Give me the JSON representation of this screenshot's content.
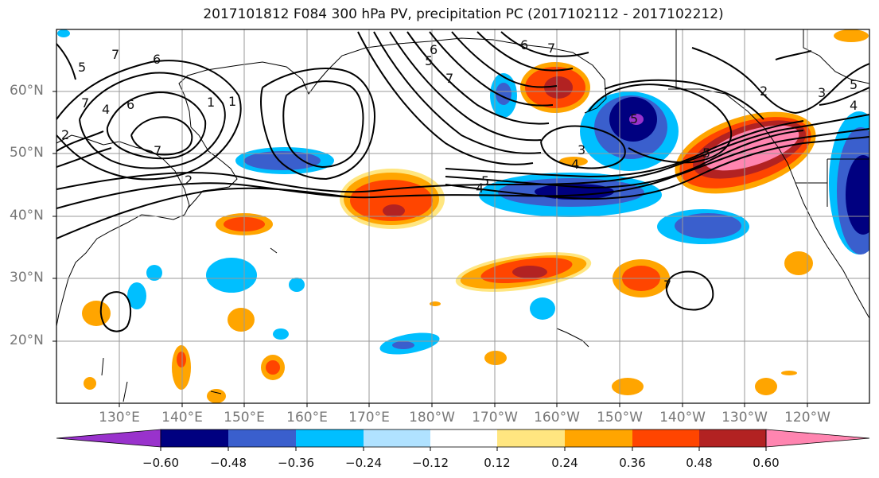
{
  "title": "2017101812 F084 300 hPa PV, precipitation PC (2017102112 - 2017102212)",
  "lat_labels": [
    "60°N",
    "50°N",
    "40°N",
    "30°N",
    "20°N"
  ],
  "lon_labels": [
    "130°E",
    "140°E",
    "150°E",
    "160°E",
    "170°E",
    "180°W",
    "170°W",
    "160°W",
    "150°W",
    "140°W",
    "130°W",
    "120°W"
  ],
  "colorbar": {
    "ticks": [
      "−0.60",
      "−0.48",
      "−0.36",
      "−0.24",
      "−0.12",
      "0.12",
      "0.24",
      "0.36",
      "0.48",
      "0.60"
    ],
    "colors": [
      "#9932cc",
      "#000080",
      "#3a5fcd",
      "#00bfff",
      "#b0e2ff",
      "#ffffff",
      "#ffe680",
      "#ffa500",
      "#ff4500",
      "#b22222",
      "#ff85b0"
    ]
  },
  "contour_labels": [
    "5",
    "7",
    "6",
    "7",
    "2",
    "4",
    "1",
    "7",
    "2",
    "6",
    "5",
    "7",
    "6",
    "7",
    "6",
    "2",
    "3",
    "5",
    "4",
    "5",
    "4",
    "1",
    "7",
    "5",
    "5",
    "3",
    "4"
  ]
}
